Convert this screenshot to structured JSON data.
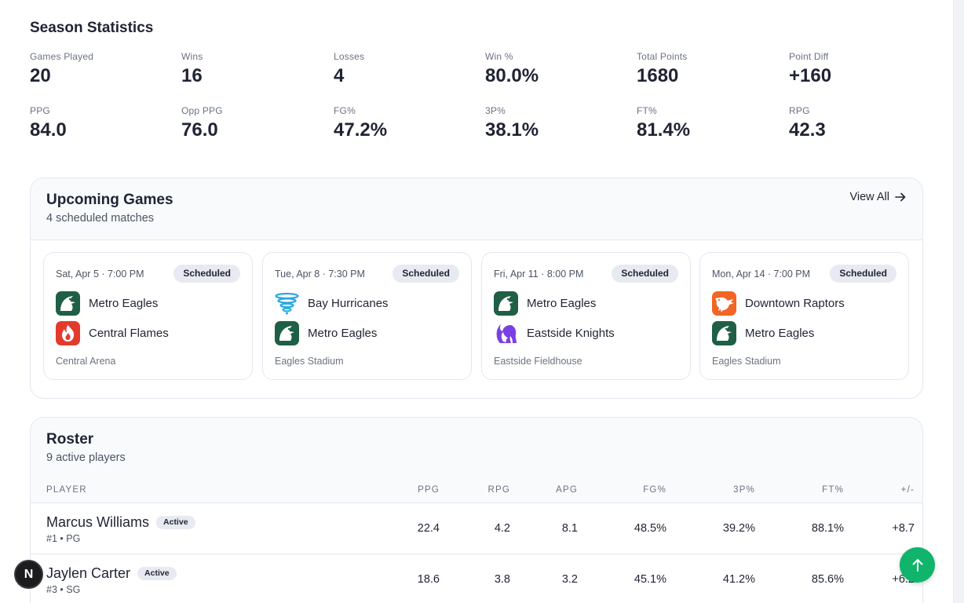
{
  "season": {
    "title": "Season Statistics",
    "stats": [
      {
        "label": "Games Played",
        "value": "20"
      },
      {
        "label": "Wins",
        "value": "16"
      },
      {
        "label": "Losses",
        "value": "4"
      },
      {
        "label": "Win %",
        "value": "80.0%"
      },
      {
        "label": "Total Points",
        "value": "1680"
      },
      {
        "label": "Point Diff",
        "value": "+160"
      },
      {
        "label": "PPG",
        "value": "84.0"
      },
      {
        "label": "Opp PPG",
        "value": "76.0"
      },
      {
        "label": "FG%",
        "value": "47.2%"
      },
      {
        "label": "3P%",
        "value": "38.1%"
      },
      {
        "label": "FT%",
        "value": "81.4%"
      },
      {
        "label": "RPG",
        "value": "42.3"
      }
    ]
  },
  "upcoming": {
    "title": "Upcoming Games",
    "subtitle": "4 scheduled matches",
    "view_all": "View All",
    "games": [
      {
        "date": "Sat, Apr 5 · 7:00 PM",
        "status": "Scheduled",
        "team1": "Metro Eagles",
        "team1_icon": "eagle-logo-icon",
        "team2": "Central Flames",
        "team2_icon": "flame-logo-icon",
        "venue": "Central Arena"
      },
      {
        "date": "Tue, Apr 8 · 7:30 PM",
        "status": "Scheduled",
        "team1": "Bay Hurricanes",
        "team1_icon": "hurricane-logo-icon",
        "team2": "Metro Eagles",
        "team2_icon": "eagle-logo-icon",
        "venue": "Eagles Stadium"
      },
      {
        "date": "Fri, Apr 11 · 8:00 PM",
        "status": "Scheduled",
        "team1": "Metro Eagles",
        "team1_icon": "eagle-logo-icon",
        "team2": "Eastside Knights",
        "team2_icon": "knight-logo-icon",
        "venue": "Eastside Fieldhouse"
      },
      {
        "date": "Mon, Apr 14 · 7:00 PM",
        "status": "Scheduled",
        "team1": "Downtown Raptors",
        "team1_icon": "raptor-logo-icon",
        "team2": "Metro Eagles",
        "team2_icon": "eagle-logo-icon",
        "venue": "Eagles Stadium"
      }
    ]
  },
  "roster": {
    "title": "Roster",
    "subtitle": "9 active players",
    "columns": [
      "PLAYER",
      "PPG",
      "RPG",
      "APG",
      "FG%",
      "3P%",
      "FT%",
      "+/-"
    ],
    "players": [
      {
        "name": "Marcus Williams",
        "status": "Active",
        "meta": "#1 • PG",
        "ppg": "22.4",
        "rpg": "4.2",
        "apg": "8.1",
        "fg": "48.5%",
        "tp": "39.2%",
        "ft": "88.1%",
        "pm": "+8.7"
      },
      {
        "name": "Jaylen Carter",
        "status": "Active",
        "meta": "#3 • SG",
        "ppg": "18.6",
        "rpg": "3.8",
        "apg": "3.2",
        "fg": "45.1%",
        "tp": "41.2%",
        "ft": "85.6%",
        "pm": "+6.2"
      }
    ]
  },
  "floating": {
    "n_badge": "N"
  },
  "colors": {
    "accent_green": "#10b46b",
    "eagle": "#1f5f45",
    "flames": "#e23b2e",
    "hurricanes": "#29a8e0",
    "knights": "#7b3fe4",
    "raptors": "#f26522"
  }
}
